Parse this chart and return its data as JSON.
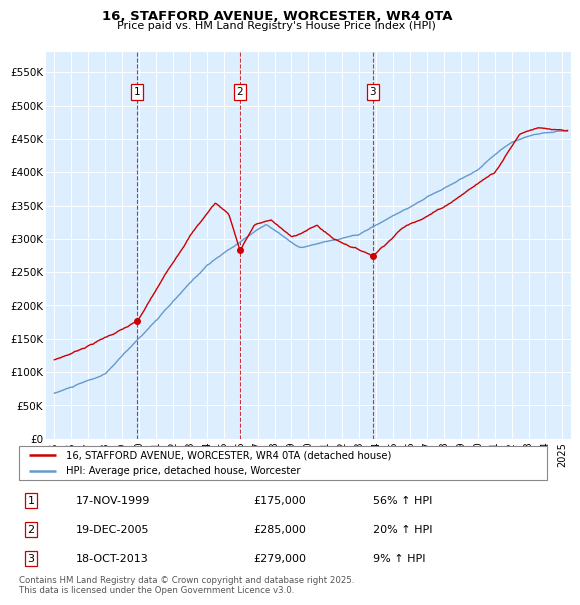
{
  "title": "16, STAFFORD AVENUE, WORCESTER, WR4 0TA",
  "subtitle": "Price paid vs. HM Land Registry's House Price Index (HPI)",
  "legend_line1": "16, STAFFORD AVENUE, WORCESTER, WR4 0TA (detached house)",
  "legend_line2": "HPI: Average price, detached house, Worcester",
  "footer": "Contains HM Land Registry data © Crown copyright and database right 2025.\nThis data is licensed under the Open Government Licence v3.0.",
  "transactions": [
    {
      "num": 1,
      "date": "17-NOV-1999",
      "price": 175000,
      "hpi_change": "56% ↑ HPI",
      "x_year": 1999.88
    },
    {
      "num": 2,
      "date": "19-DEC-2005",
      "price": 285000,
      "hpi_change": "20% ↑ HPI",
      "x_year": 2005.96
    },
    {
      "num": 3,
      "date": "18-OCT-2013",
      "price": 279000,
      "hpi_change": "9% ↑ HPI",
      "x_year": 2013.8
    }
  ],
  "price_color": "#cc0000",
  "hpi_color": "#6699cc",
  "bg_color": "#ddeeff",
  "ylim": [
    0,
    580000
  ],
  "xlim_start": 1994.5,
  "xlim_end": 2025.5,
  "yticks": [
    0,
    50000,
    100000,
    150000,
    200000,
    250000,
    300000,
    350000,
    400000,
    450000,
    500000,
    550000
  ],
  "ytick_labels": [
    "£0",
    "£50K",
    "£100K",
    "£150K",
    "£200K",
    "£250K",
    "£300K",
    "£350K",
    "£400K",
    "£450K",
    "£500K",
    "£550K"
  ],
  "xticks": [
    1995,
    1996,
    1997,
    1998,
    1999,
    2000,
    2001,
    2002,
    2003,
    2004,
    2005,
    2006,
    2007,
    2008,
    2009,
    2010,
    2011,
    2012,
    2013,
    2014,
    2015,
    2016,
    2017,
    2018,
    2019,
    2020,
    2021,
    2022,
    2023,
    2024,
    2025
  ]
}
